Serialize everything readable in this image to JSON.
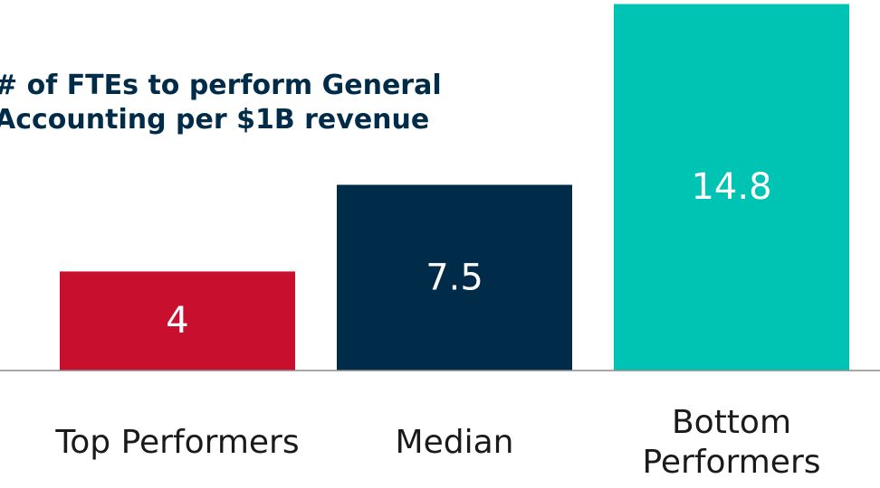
{
  "chart_data": {
    "type": "bar",
    "title": "# of FTEs to perform General Accounting per $1B revenue",
    "categories": [
      "Top Performers",
      "Median",
      "Bottom Performers"
    ],
    "values": [
      4,
      7.5,
      14.8
    ],
    "colors": [
      "#c8102e",
      "#002b49",
      "#00c4b3"
    ],
    "ylim": [
      0,
      15
    ]
  }
}
